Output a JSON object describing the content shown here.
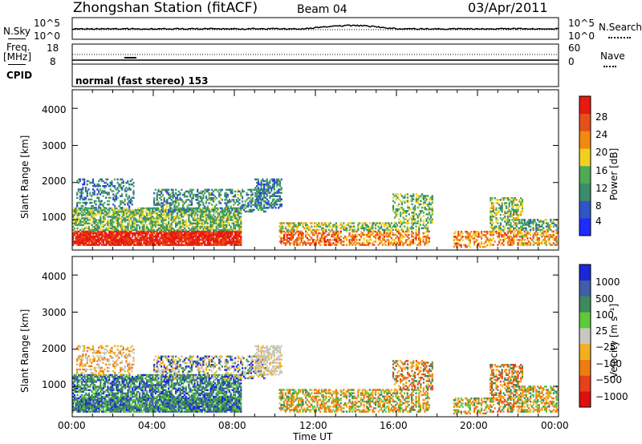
{
  "header": {
    "station": "Zhongshan Station (fitACF)",
    "beam": "Beam 04",
    "date": "03/Apr/2011"
  },
  "sky_panel": {
    "left_label": "N.Sky",
    "right_label": "N.Search",
    "left_ticks": [
      "10^5",
      "10^0"
    ],
    "right_ticks": [
      "10^5",
      "10^0"
    ]
  },
  "freq_panel": {
    "left_label_1": "Freq.",
    "left_label_2": "[MHz]",
    "left_ticks": [
      "18",
      "8"
    ],
    "right_label": "Nave",
    "right_ticks": [
      "60",
      "0"
    ]
  },
  "cpid_panel": {
    "label": "CPID",
    "text": "normal (fast stereo) 153"
  },
  "chart_data": [
    {
      "type": "heatmap",
      "title": "",
      "xlabel": "",
      "ylabel": "Slant Range [km]",
      "yticks": [
        "1000",
        "2000",
        "3000",
        "4000"
      ],
      "ylim": [
        180,
        4500
      ],
      "colorbar_label": "Power [dB]",
      "colorbar_ticks": [
        "4",
        "8",
        "12",
        "16",
        "20",
        "24",
        "28"
      ],
      "colorbar_colors": [
        "#1e2cff",
        "#2f55c8",
        "#3a8c6a",
        "#4dab56",
        "#f2d020",
        "#f08a10",
        "#e8501a",
        "#e61a10"
      ]
    },
    {
      "type": "heatmap",
      "title": "",
      "xlabel": "Time UT",
      "ylabel": "Slant Range [km]",
      "yticks": [
        "1000",
        "2000",
        "3000",
        "4000"
      ],
      "ylim": [
        180,
        4500
      ],
      "xticks": [
        "00:00",
        "04:00",
        "08:00",
        "12:00",
        "16:00",
        "20:00",
        "00:00"
      ],
      "colorbar_label": "Velocity [m s⁻¹]",
      "colorbar_ticks": [
        "1000",
        "500",
        "100",
        "25",
        "−25",
        "−100",
        "−500",
        "−1000"
      ],
      "colorbar_colors": [
        "#1a28d8",
        "#3f5fa8",
        "#3d8a5a",
        "#5ec93a",
        "#c8c8c0",
        "#f2b020",
        "#f07c10",
        "#e8401a",
        "#e01010"
      ]
    }
  ],
  "colors": {
    "axis": "#000000"
  }
}
